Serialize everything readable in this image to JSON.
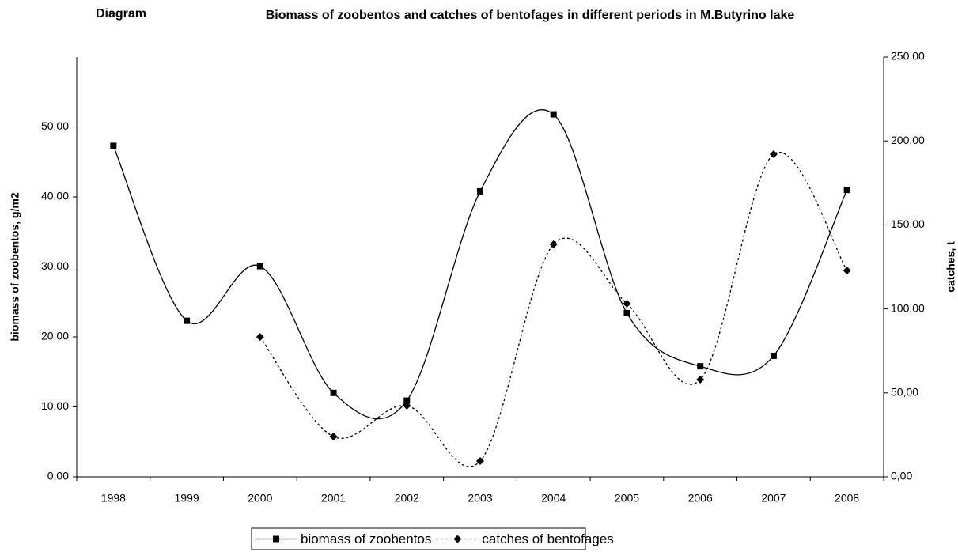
{
  "chart_data": {
    "type": "line",
    "label": "Diagram",
    "title": "Biomass of zoobentos and catches of bentofages in different periods in M.Butyrino lake",
    "ylabel": "biomass of zoobentos, g/m2",
    "y2label": "catches, t",
    "categories": [
      "1998",
      "1999",
      "2000",
      "2001",
      "2002",
      "2003",
      "2004",
      "2005",
      "2006",
      "2007",
      "2008"
    ],
    "series": [
      {
        "name": "biomass of zoobentos",
        "color": "#000000",
        "marker": "square",
        "dash": "solid",
        "values": [
          47.3,
          22.3,
          30.1,
          12.0,
          10.9,
          40.8,
          51.8,
          23.4,
          15.8,
          17.3,
          41.0
        ]
      },
      {
        "name": "catches of bentofages",
        "color": "#000000",
        "marker": "diamond",
        "dash": "dotted",
        "axis": "y2",
        "values": [
          null,
          null,
          83.3,
          24.0,
          42.4,
          9.4,
          138.4,
          103.1,
          57.9,
          192.1,
          122.9
        ]
      }
    ],
    "ylim": [
      0,
      60
    ],
    "yticks": [
      {
        "value": 0,
        "label": "0,00"
      },
      {
        "value": 10,
        "label": "10,00"
      },
      {
        "value": 20,
        "label": "20,00"
      },
      {
        "value": 30,
        "label": "30,00"
      },
      {
        "value": 40,
        "label": "40,00"
      },
      {
        "value": 50,
        "label": "50,00"
      }
    ],
    "y2lim": [
      0,
      250
    ],
    "y2ticks": [
      {
        "value": 0,
        "label": "0,00"
      },
      {
        "value": 50,
        "label": "50,00"
      },
      {
        "value": 100,
        "label": "100,00"
      },
      {
        "value": 150,
        "label": "150,00"
      },
      {
        "value": 200,
        "label": "200,00"
      },
      {
        "value": 250,
        "label": "250,00"
      }
    ],
    "smooth": true,
    "legend": "bottom"
  }
}
